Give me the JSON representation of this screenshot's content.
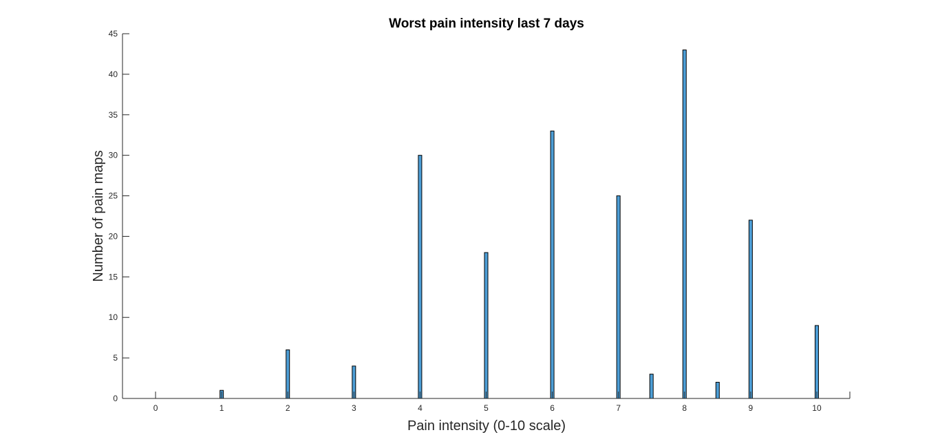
{
  "chart_data": {
    "type": "bar",
    "title": "Worst pain intensity last 7 days",
    "xlabel": "Pain intensity (0-10 scale)",
    "ylabel": "Number of pain maps",
    "xlim": [
      -0.5,
      10.5
    ],
    "ylim": [
      0,
      45
    ],
    "xticks": [
      0,
      1,
      2,
      3,
      4,
      5,
      6,
      7,
      8,
      9,
      10
    ],
    "yticks": [
      0,
      5,
      10,
      15,
      20,
      25,
      30,
      35,
      40,
      45
    ],
    "x": [
      1,
      2,
      3,
      4,
      5,
      6,
      7,
      7.5,
      8,
      8.5,
      9,
      10
    ],
    "values": [
      1,
      6,
      4,
      30,
      18,
      33,
      25,
      3,
      43,
      2,
      22,
      9
    ],
    "bar_color": "#4d9ed6",
    "grid": false,
    "legend": "none"
  }
}
